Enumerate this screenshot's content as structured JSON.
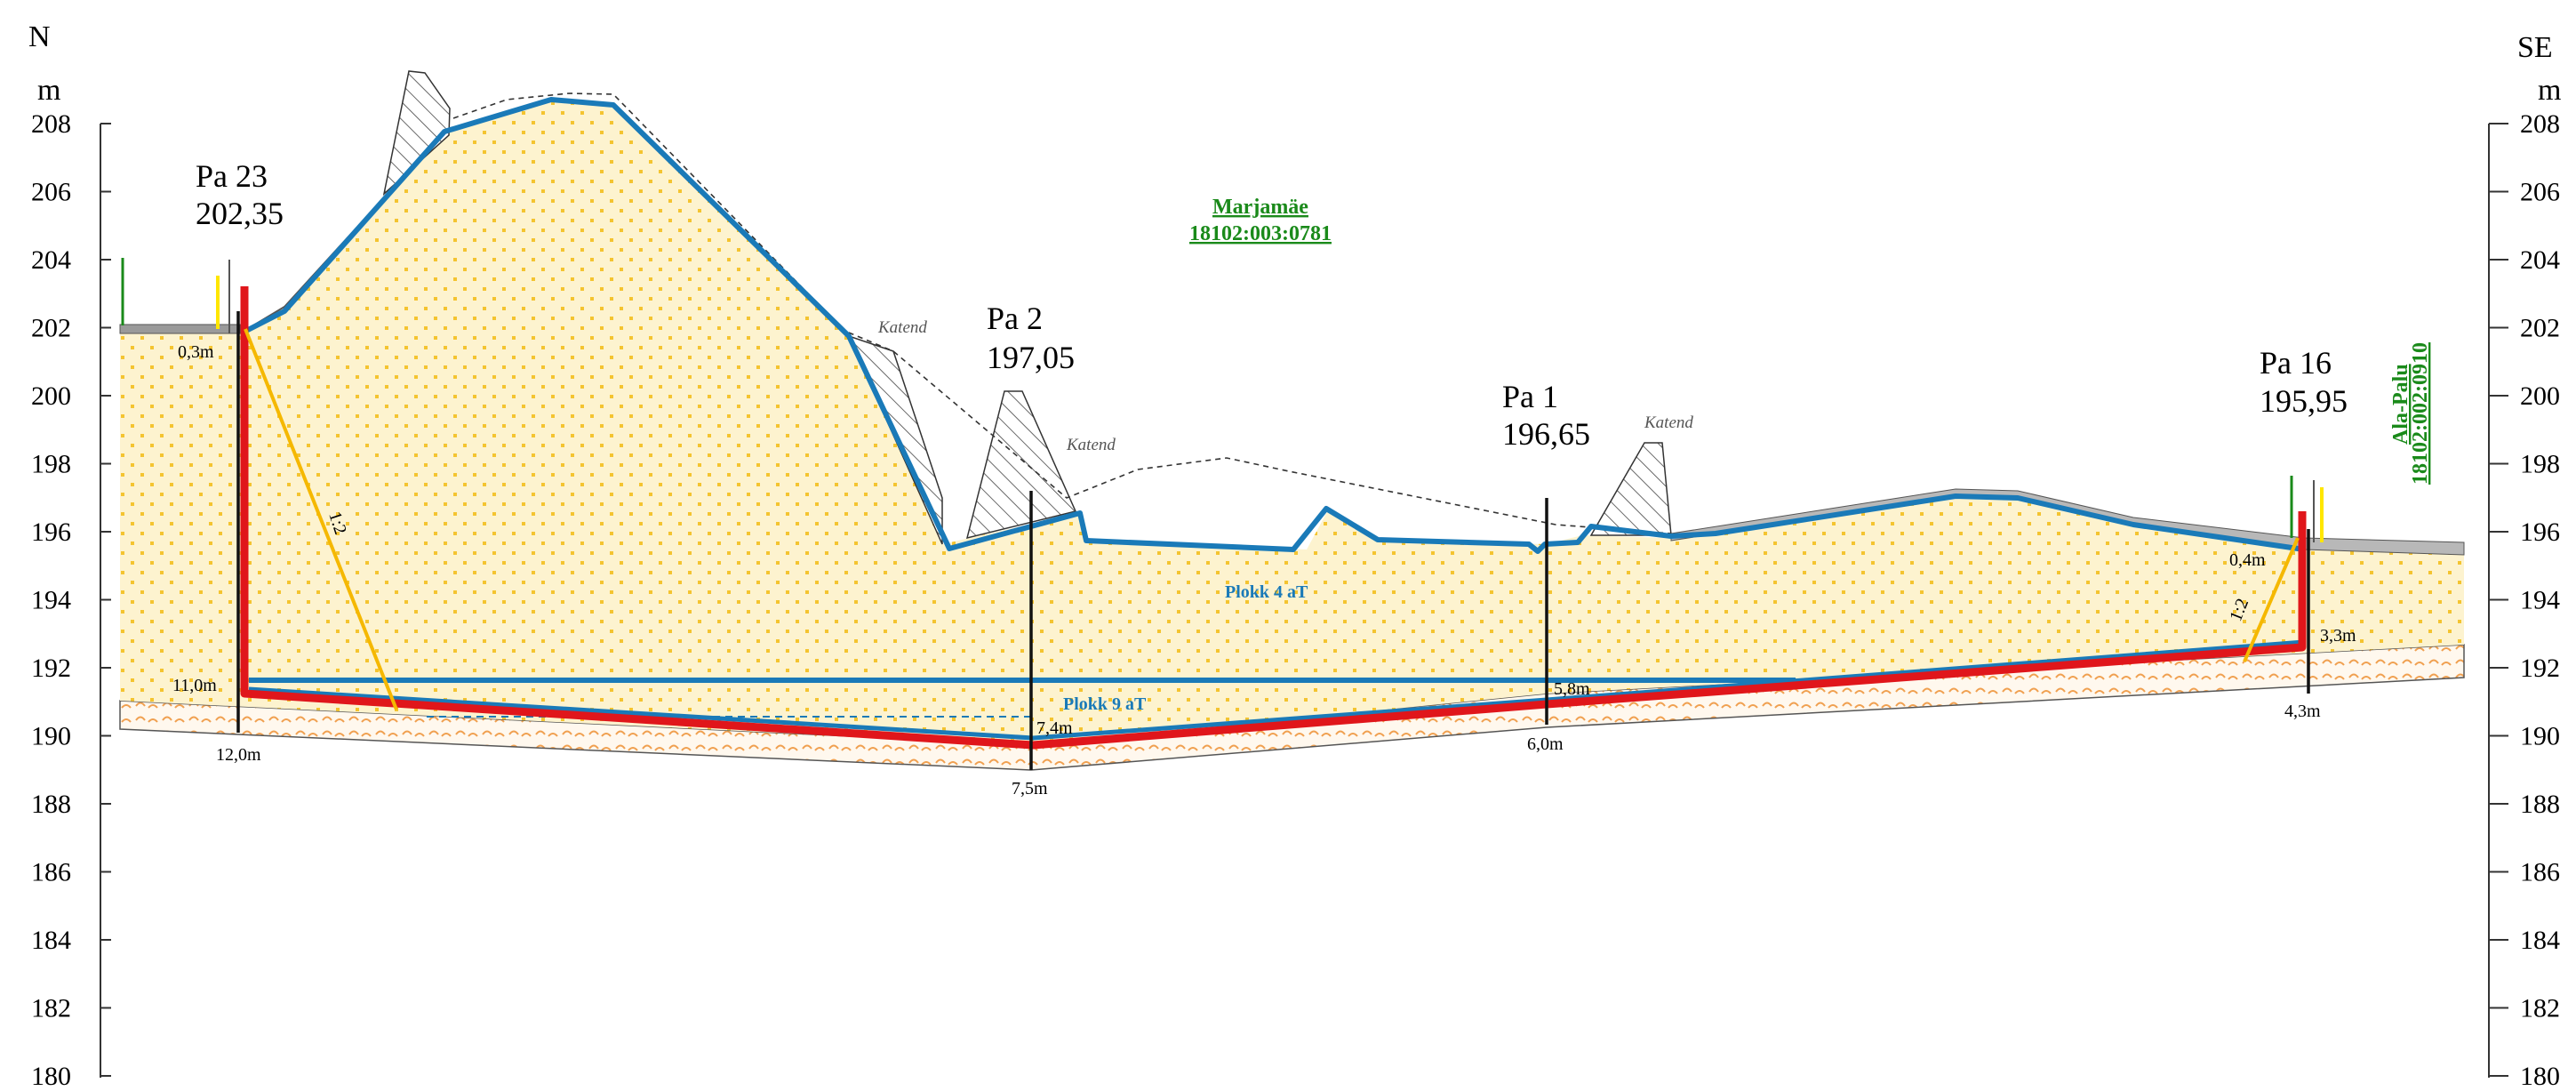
{
  "left_header": {
    "direction": "N",
    "unit": "m"
  },
  "right_header": {
    "direction": "SE",
    "unit": "m"
  },
  "elevation_ticks": [
    "208",
    "206",
    "204",
    "202",
    "200",
    "198",
    "196",
    "194",
    "192",
    "190",
    "188",
    "186",
    "184",
    "182",
    "180"
  ],
  "wells": [
    {
      "name": "Pa 23",
      "elevation": "202,35"
    },
    {
      "name": "Pa 2",
      "elevation": "197,05"
    },
    {
      "name": "Pa 1",
      "elevation": "196,65"
    },
    {
      "name": "Pa 16",
      "elevation": "195,95"
    }
  ],
  "depth_labels": {
    "pa23_top": "0,3m",
    "pa23_mid": "11,0m",
    "pa23_bottom": "12,0m",
    "pa2_mid": "7,4m",
    "pa2_bottom": "7,5m",
    "pa1_mid": "5,8m",
    "pa1_bottom": "6,0m",
    "pa16_top": "0,4m",
    "pa16_mid": "3,3m",
    "pa16_bottom": "4,3m"
  },
  "katend_labels": [
    "Katend",
    "Katend",
    "Katend"
  ],
  "slope_labels": [
    "1:2",
    "1:2"
  ],
  "parcels": [
    {
      "name": "Marjamäe",
      "code": "18102:003:0781"
    },
    {
      "name": "Ala-Palu",
      "code": "18102:002:0910"
    }
  ],
  "blocks": [
    "Plokk 4 aT",
    "Plokk 9 aT"
  ],
  "colors": {
    "sand_fill": "#fbeec0",
    "sand_dots": "#f4c430",
    "clay_dash": "#f0a050",
    "blue_line": "#1a7ab8",
    "red_line": "#e0161b",
    "orange_line": "#f5b800",
    "green_label": "#1a8a1a",
    "grey_topsoil": "#9a9a9a"
  }
}
